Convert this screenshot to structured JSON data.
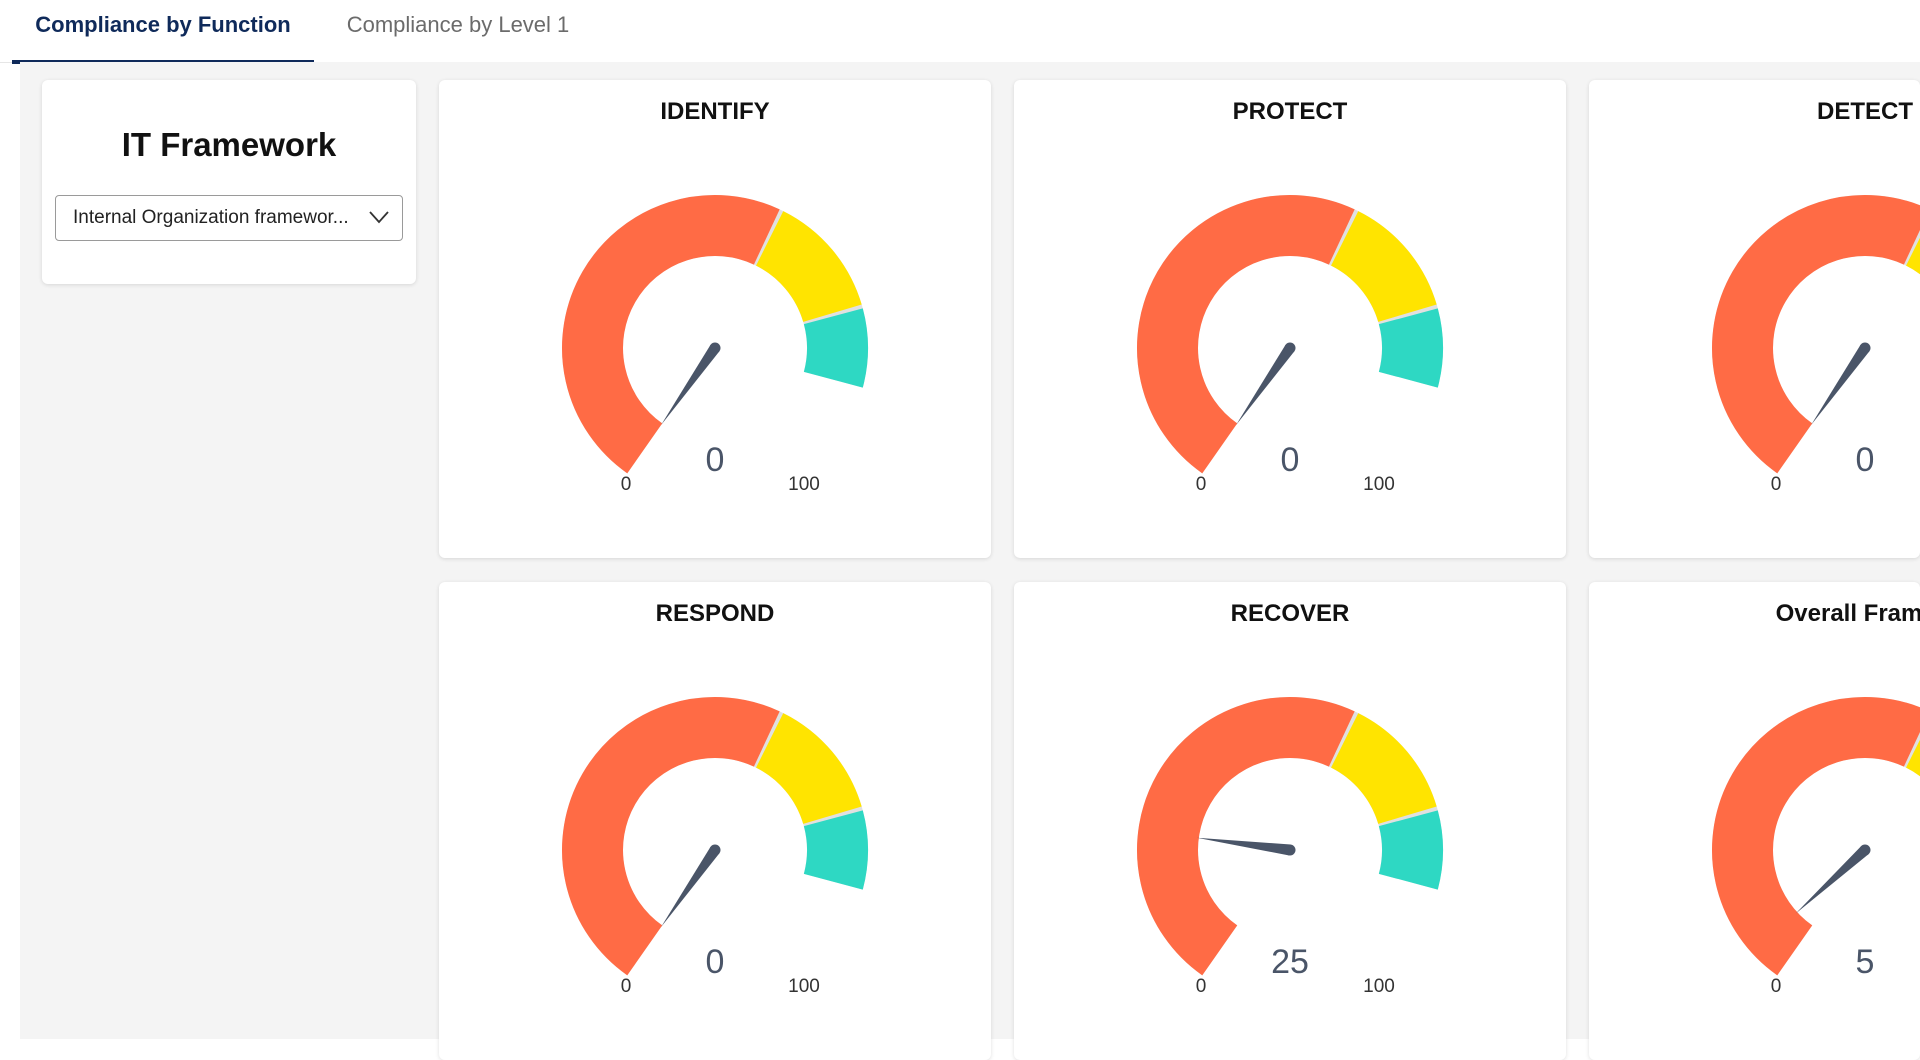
{
  "tabs": [
    {
      "label": "Compliance by Function",
      "active": true
    },
    {
      "label": "Compliance by Level 1",
      "active": false
    }
  ],
  "framework": {
    "title": "IT Framework",
    "selected": "Internal Organization framewor..."
  },
  "colors": {
    "low": "#ff6b45",
    "medium": "#ffe400",
    "high": "#2ed8c3",
    "separator": "#e0e0e0",
    "needle": "#4a5568",
    "tab_active": "#0f2a5a"
  },
  "gauge_scale": {
    "min": 0,
    "max": 100,
    "min_label": "0",
    "max_label": "100"
  },
  "gauges": [
    {
      "title": "IDENTIFY",
      "value": 0,
      "value_label": "0"
    },
    {
      "title": "PROTECT",
      "value": 0,
      "value_label": "0"
    },
    {
      "title": "DETECT",
      "value": 0,
      "value_label": "0"
    },
    {
      "title": "RESPOND",
      "value": 0,
      "value_label": "0"
    },
    {
      "title": "RECOVER",
      "value": 25,
      "value_label": "25"
    },
    {
      "title": "Overall Framew",
      "value": 5,
      "value_label": "5"
    }
  ]
}
